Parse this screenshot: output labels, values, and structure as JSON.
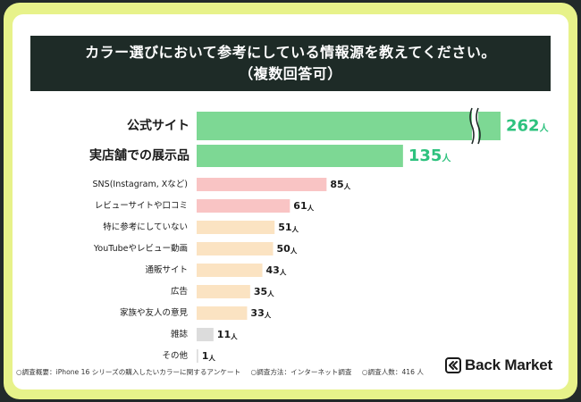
{
  "title_lines": [
    "カラー選びにおいて参考にしている情報源を教えてください。",
    "（複数回答可）"
  ],
  "chart_data": {
    "type": "bar",
    "orientation": "horizontal",
    "unit": "人",
    "categories": [
      "公式サイト",
      "実店舗での展示品",
      "SNS(Instagram, Xなど)",
      "レビューサイトや口コミ",
      "特に参考にしていない",
      "YouTubeやレビュー動画",
      "通販サイト",
      "広告",
      "家族や友人の意見",
      "雑誌",
      "その他"
    ],
    "values": [
      262,
      135,
      85,
      61,
      51,
      50,
      43,
      35,
      33,
      11,
      1
    ],
    "axis_break_on_first_bar": true,
    "colors": [
      "#7dd894",
      "#7dd894",
      "#f9c4c4",
      "#f9c4c4",
      "#fbe3c2",
      "#fbe3c2",
      "#fbe3c2",
      "#fbe3c2",
      "#fbe3c2",
      "#dcdcdc",
      "#dcdcdc"
    ],
    "grid": false,
    "legend": "none"
  },
  "footer": {
    "note1": "○調査概要：iPhone 16 シリーズの購入したいカラーに関するアンケート",
    "note2": "○調査方法：インターネット調査",
    "note3": "○調査人数：416 人"
  },
  "brand": {
    "name": "Back Market",
    "icon": "back-market-logo-icon"
  },
  "colors": {
    "frame": "#e7f28a",
    "title_bg": "#1e2b27",
    "highlight": "#7dd894",
    "value_green": "#2ec27e"
  }
}
